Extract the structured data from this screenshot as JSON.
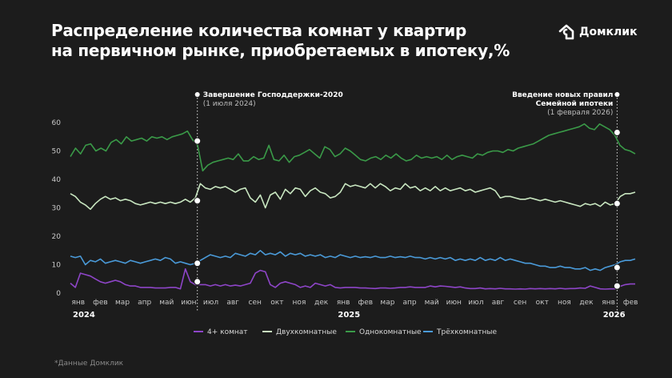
{
  "title_lines": [
    "Распределение количества комнат у квартир",
    "на первичном рынке, приобретаемых в ипотеку,%"
  ],
  "brand": {
    "name": "Домклик",
    "icon": "domclick-logo-icon"
  },
  "footnote": "*Данные Домклик",
  "chart_data": {
    "type": "line",
    "title": "Распределение количества комнат у квартир на первичном рынке, приобретаемых в ипотеку,%",
    "ylim": [
      0,
      60
    ],
    "yticks": [
      0,
      10,
      20,
      30,
      40,
      50,
      60
    ],
    "grid": false,
    "legend_position": "bottom",
    "months": [
      "янв",
      "фев",
      "мар",
      "апр",
      "май",
      "июн",
      "июл",
      "авг",
      "сен",
      "окт",
      "ноя",
      "дек",
      "янв",
      "фев",
      "мар",
      "апр",
      "май",
      "июн",
      "июл",
      "авг",
      "сен",
      "окт",
      "ноя",
      "дек",
      "янв",
      "фев"
    ],
    "years": [
      {
        "label": "2024",
        "month_index": 0
      },
      {
        "label": "2025",
        "month_index": 12
      },
      {
        "label": "2026",
        "month_index": 24
      }
    ],
    "events": [
      {
        "title": "Завершение Господдержки-2020",
        "date": "(1 июля 2024)",
        "title_lines": [
          "Завершение Господдержки-2020"
        ],
        "month_index": 6
      },
      {
        "title": "Введение новых правил Семейной ипотеки",
        "date": "(1 февраля 2026)",
        "title_lines": [
          "Введение новых правил",
          "Семейной ипотеки"
        ],
        "month_index": 25
      }
    ],
    "series": [
      {
        "name": "4+ комнат",
        "color": "#8e45c8",
        "values": [
          3.5,
          2.0,
          7.0,
          6.5,
          6.0,
          5.0,
          4.0,
          3.5,
          4.0,
          4.5,
          4.0,
          3.0,
          2.5,
          2.5,
          2.0,
          2.0,
          2.0,
          1.8,
          1.8,
          1.8,
          2.0,
          2.0,
          1.5,
          8.5,
          4.0,
          3.0,
          3.0,
          3.0,
          2.5,
          3.0,
          2.5,
          3.0,
          2.5,
          2.8,
          2.5,
          3.0,
          3.5,
          7.0,
          8.0,
          7.5,
          3.0,
          2.0,
          3.5,
          4.0,
          3.5,
          3.0,
          2.0,
          2.5,
          2.0,
          3.5,
          3.0,
          2.5,
          3.0,
          2.0,
          1.8,
          2.0,
          2.0,
          2.0,
          1.8,
          1.8,
          1.7,
          1.6,
          1.8,
          1.8,
          1.7,
          1.8,
          2.0,
          2.0,
          2.2,
          2.0,
          2.0,
          2.0,
          2.5,
          2.2,
          2.5,
          2.4,
          2.2,
          2.0,
          2.2,
          1.8,
          1.6,
          1.6,
          1.8,
          1.5,
          1.6,
          1.5,
          1.7,
          1.5,
          1.5,
          1.4,
          1.5,
          1.4,
          1.6,
          1.5,
          1.6,
          1.5,
          1.6,
          1.5,
          1.7,
          1.5,
          1.6,
          1.6,
          1.8,
          1.7,
          2.5,
          2.0,
          1.5,
          1.4,
          1.5,
          1.5,
          2.4,
          3.0,
          3.2,
          3.2
        ]
      },
      {
        "name": "Двухкомнатные",
        "color": "#c8e6c0",
        "values": [
          35.0,
          34.0,
          32.0,
          31.0,
          29.5,
          31.5,
          33.0,
          34.0,
          33.0,
          33.5,
          32.5,
          33.0,
          32.5,
          31.5,
          31.0,
          31.5,
          32.0,
          31.5,
          32.0,
          31.5,
          32.0,
          31.5,
          32.0,
          33.0,
          32.0,
          33.5,
          38.5,
          37.0,
          36.5,
          37.5,
          37.0,
          37.5,
          36.5,
          35.5,
          36.5,
          37.0,
          33.5,
          32.0,
          34.5,
          30.0,
          34.5,
          35.5,
          33.0,
          36.5,
          35.0,
          37.0,
          36.5,
          34.0,
          36.0,
          37.0,
          35.5,
          35.0,
          33.5,
          34.0,
          35.5,
          38.5,
          37.5,
          38.0,
          37.5,
          37.0,
          38.5,
          37.0,
          38.5,
          37.5,
          36.0,
          37.0,
          36.5,
          38.5,
          37.0,
          37.5,
          36.0,
          37.0,
          36.0,
          37.5,
          36.0,
          37.0,
          36.0,
          36.5,
          37.0,
          36.0,
          36.5,
          35.5,
          36.0,
          36.5,
          37.0,
          36.0,
          33.5,
          34.0,
          34.0,
          33.5,
          33.0,
          33.0,
          33.5,
          33.0,
          32.5,
          33.0,
          32.5,
          32.0,
          32.5,
          32.0,
          31.5,
          31.0,
          30.5,
          31.5,
          31.0,
          31.5,
          30.5,
          32.0,
          31.0,
          31.5,
          34.0,
          35.0,
          35.0,
          35.5
        ]
      },
      {
        "name": "Однокомнатные",
        "color": "#3a9a48",
        "values": [
          48.0,
          51.0,
          49.0,
          52.0,
          52.5,
          50.0,
          51.0,
          50.0,
          53.0,
          54.0,
          52.5,
          55.0,
          53.5,
          54.0,
          54.5,
          53.5,
          55.0,
          54.5,
          55.0,
          54.0,
          55.0,
          55.5,
          56.0,
          57.0,
          54.0,
          52.0,
          43.0,
          45.0,
          46.0,
          46.5,
          47.0,
          47.5,
          47.0,
          49.0,
          46.5,
          46.5,
          48.0,
          47.0,
          47.5,
          52.0,
          47.0,
          46.5,
          48.5,
          46.0,
          48.0,
          48.5,
          49.5,
          50.5,
          49.0,
          47.5,
          51.5,
          50.5,
          48.0,
          49.0,
          51.0,
          50.0,
          48.5,
          47.0,
          46.5,
          47.5,
          48.0,
          47.0,
          48.5,
          47.5,
          49.0,
          47.5,
          46.5,
          47.0,
          48.5,
          47.5,
          48.0,
          47.5,
          48.0,
          47.0,
          48.5,
          47.0,
          48.0,
          48.5,
          48.0,
          47.5,
          49.0,
          48.5,
          49.5,
          50.0,
          50.0,
          49.5,
          50.5,
          50.0,
          51.0,
          51.5,
          52.0,
          52.5,
          53.5,
          54.5,
          55.5,
          56.0,
          56.5,
          57.0,
          57.5,
          58.0,
          58.5,
          59.5,
          58.0,
          57.5,
          59.5,
          58.5,
          57.5,
          55.5,
          52.0,
          50.5,
          50.0,
          49.0
        ]
      },
      {
        "name": "Трёхкомнатные",
        "color": "#4a9ad8",
        "values": [
          13.0,
          12.5,
          13.0,
          10.0,
          11.5,
          11.0,
          12.0,
          10.5,
          11.0,
          11.5,
          11.0,
          10.5,
          11.5,
          11.0,
          10.5,
          11.0,
          11.5,
          12.0,
          11.5,
          12.5,
          12.0,
          10.5,
          11.0,
          10.5,
          10.0,
          10.5,
          11.5,
          12.5,
          13.5,
          13.0,
          12.5,
          13.0,
          12.5,
          14.0,
          13.5,
          13.0,
          14.0,
          13.5,
          15.0,
          13.5,
          14.0,
          13.5,
          14.5,
          13.0,
          14.0,
          13.5,
          14.0,
          13.0,
          13.5,
          13.0,
          13.5,
          12.5,
          13.0,
          12.5,
          13.5,
          13.0,
          12.5,
          13.0,
          12.5,
          12.8,
          12.5,
          13.0,
          12.5,
          12.5,
          13.0,
          12.5,
          12.8,
          12.5,
          13.0,
          12.5,
          12.5,
          12.0,
          12.5,
          12.0,
          12.5,
          12.0,
          12.5,
          11.5,
          12.0,
          11.5,
          12.0,
          11.5,
          12.5,
          11.5,
          12.0,
          11.5,
          12.5,
          11.5,
          12.0,
          11.5,
          11.0,
          10.5,
          10.5,
          10.0,
          9.5,
          9.5,
          9.0,
          9.0,
          9.5,
          9.0,
          9.0,
          8.5,
          8.5,
          9.0,
          8.0,
          8.5,
          8.0,
          9.0,
          9.5,
          10.0,
          11.0,
          11.5,
          11.5,
          12.0
        ]
      }
    ],
    "event_markers": [
      {
        "event_index": 0,
        "values": [
          4.0,
          32.5,
          53.5,
          10.5
        ]
      },
      {
        "event_index": 1,
        "values": [
          2.5,
          31.5,
          56.5,
          9.0
        ]
      }
    ]
  }
}
